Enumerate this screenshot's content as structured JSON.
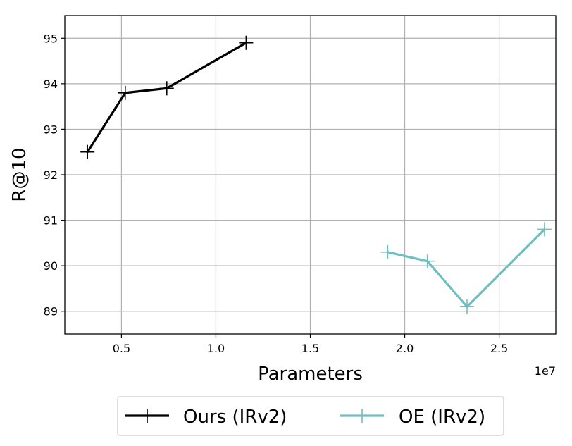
{
  "chart_data": {
    "type": "line",
    "xlabel": "Parameters",
    "ylabel": "R@10",
    "x_offset_label": "1e7",
    "xlim": [
      0.2,
      2.8
    ],
    "ylim": [
      88.5,
      95.5
    ],
    "xticks": [
      0.5,
      1.0,
      1.5,
      2.0,
      2.5
    ],
    "xtick_labels": [
      "0.5",
      "1.0",
      "1.5",
      "2.0",
      "2.5"
    ],
    "yticks": [
      89,
      90,
      91,
      92,
      93,
      94,
      95
    ],
    "ytick_labels": [
      "89",
      "90",
      "91",
      "92",
      "93",
      "94",
      "95"
    ],
    "grid": true,
    "legend_position": "bottom-center-outside",
    "series": [
      {
        "name": "Ours (IRv2)",
        "color": "#000000",
        "marker": "plus",
        "x": [
          0.32,
          0.52,
          0.74,
          1.16
        ],
        "y": [
          92.5,
          93.8,
          93.9,
          94.9
        ]
      },
      {
        "name": "OE (IRv2)",
        "color": "#6dbfc2",
        "marker": "plus",
        "x": [
          1.91,
          2.12,
          2.33,
          2.74
        ],
        "y": [
          90.3,
          90.1,
          89.1,
          90.8
        ]
      }
    ]
  }
}
